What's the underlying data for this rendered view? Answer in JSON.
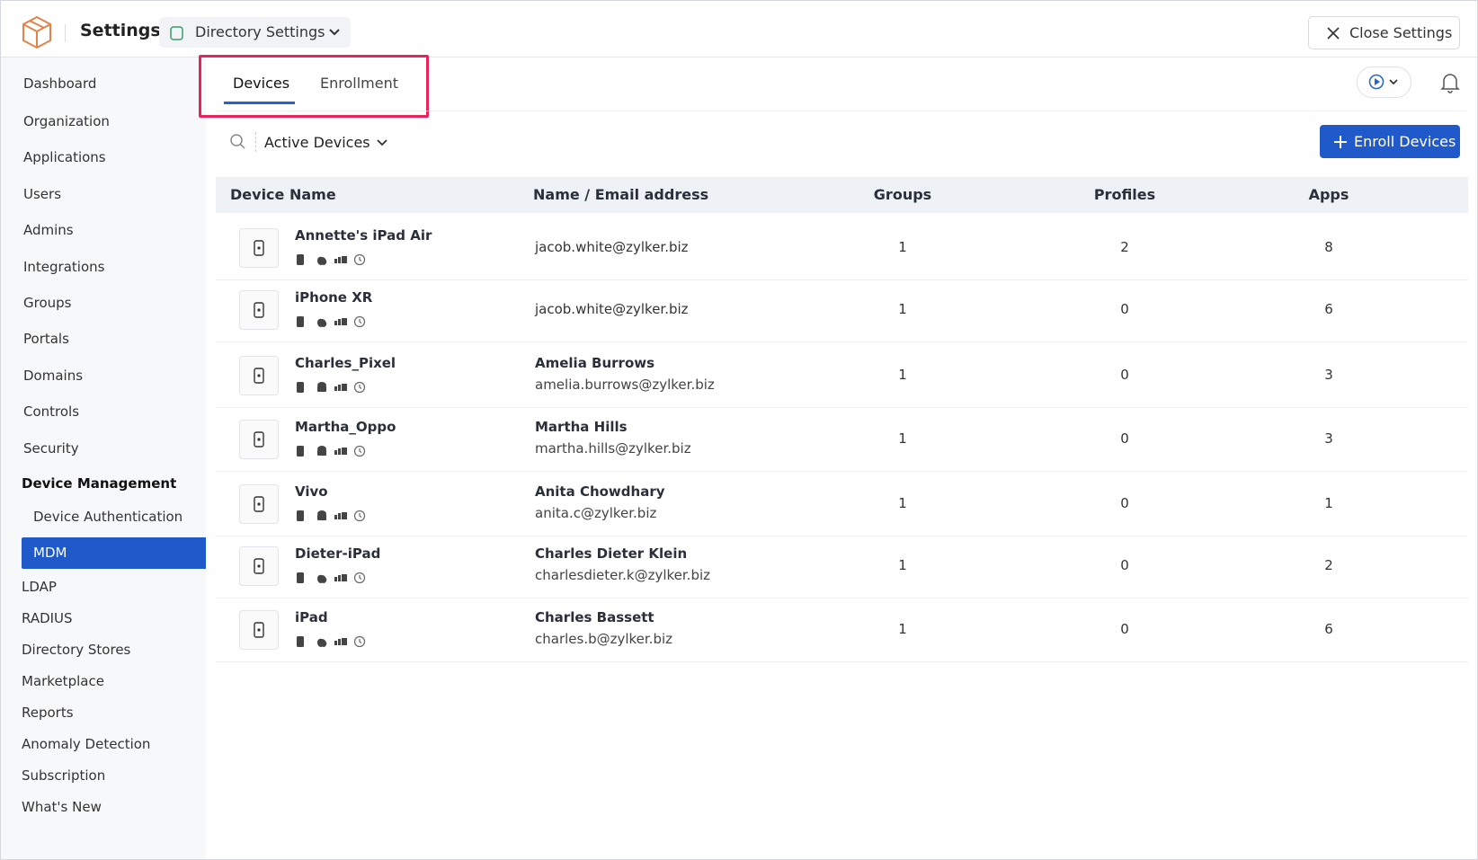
{
  "header": {
    "title": "Settings",
    "workspace": "Directory Settings",
    "close": "Close Settings"
  },
  "sidebar": {
    "items": [
      "Dashboard",
      "Organization",
      "Applications",
      "Users",
      "Admins",
      "Integrations",
      "Groups",
      "Portals",
      "Domains",
      "Controls",
      "Security",
      "Device Management",
      "Device Authentication",
      "MDM",
      "LDAP",
      "RADIUS",
      "Directory Stores",
      "Marketplace",
      "Reports",
      "Anomaly Detection",
      "Subscription",
      "What's New"
    ]
  },
  "tabs": [
    "Devices",
    "Enrollment"
  ],
  "toolbar": {
    "filter": "Active Devices",
    "enroll": "Enroll Devices"
  },
  "table": {
    "columns": [
      "Device Name",
      "Name / Email address",
      "Groups",
      "Profiles",
      "Apps"
    ],
    "rows": [
      {
        "device": "Annette's iPad Air",
        "os": "apple",
        "email": "jacob.white@zylker.biz",
        "groups": 1,
        "profiles": 2,
        "apps": 8
      },
      {
        "device": "iPhone XR",
        "os": "apple",
        "email": "jacob.white@zylker.biz",
        "groups": 1,
        "profiles": 0,
        "apps": 6
      },
      {
        "device": "Charles_Pixel",
        "os": "android",
        "name": "Amelia Burrows",
        "email": "amelia.burrows@zylker.biz",
        "groups": 1,
        "profiles": 0,
        "apps": 3
      },
      {
        "device": "Martha_Oppo",
        "os": "android",
        "name": "Martha Hills",
        "email": "martha.hills@zylker.biz",
        "groups": 1,
        "profiles": 0,
        "apps": 3
      },
      {
        "device": "Vivo",
        "os": "android",
        "name": "Anita Chowdhary",
        "email": "anita.c@zylker.biz",
        "groups": 1,
        "profiles": 0,
        "apps": 1
      },
      {
        "device": "Dieter-iPad",
        "os": "apple",
        "name": "Charles Dieter Klein",
        "email": "charlesdieter.k@zylker.biz",
        "groups": 1,
        "profiles": 0,
        "apps": 2
      },
      {
        "device": "iPad",
        "os": "apple",
        "name": "Charles Bassett",
        "email": "charles.b@zylker.biz",
        "groups": 1,
        "profiles": 0,
        "apps": 6
      }
    ]
  }
}
